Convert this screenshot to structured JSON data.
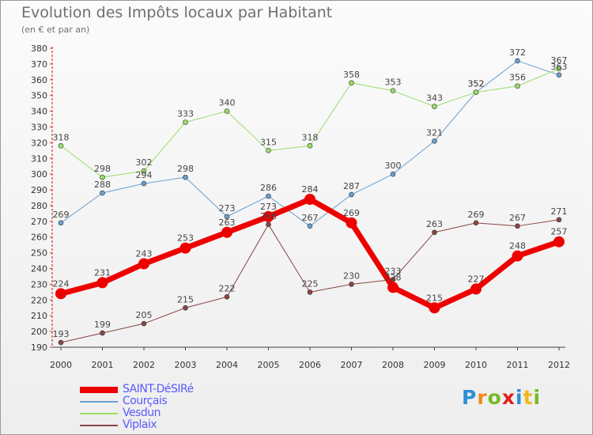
{
  "title": "Evolution des Impôts locaux par Habitant",
  "subtitle": "(en € et par an)",
  "brand": {
    "letters": [
      {
        "t": "P",
        "color": "#2a8fd6"
      },
      {
        "t": "r",
        "color": "#f08a1a"
      },
      {
        "t": "o",
        "color": "#78b828"
      },
      {
        "t": "x",
        "color": "#e0201a"
      },
      {
        "t": "i",
        "color": "#2a8fd6"
      },
      {
        "t": "t",
        "color": "#f0b81a"
      },
      {
        "t": "i",
        "color": "#78b828"
      }
    ]
  },
  "chart_data": {
    "type": "line",
    "x": [
      2000,
      2001,
      2002,
      2003,
      2004,
      2005,
      2006,
      2007,
      2008,
      2009,
      2010,
      2011,
      2012
    ],
    "ylim": [
      190,
      380
    ],
    "ytick_step": 10,
    "grid": false,
    "legend_position": "bottom-left",
    "series": [
      {
        "name": "SAINT-DéSIRé",
        "color": "#ee0000",
        "width": 7,
        "marker": 7,
        "values": [
          224,
          231,
          243,
          253,
          263,
          273,
          284,
          269,
          228,
          215,
          227,
          248,
          257
        ]
      },
      {
        "name": "Courçais",
        "color": "#6a9fcf",
        "width": 1,
        "marker": 3,
        "values": [
          269,
          288,
          294,
          298,
          273,
          286,
          267,
          287,
          300,
          321,
          352,
          372,
          363
        ]
      },
      {
        "name": "Vesdun",
        "color": "#99dd66",
        "width": 1,
        "marker": 3,
        "values": [
          318,
          298,
          302,
          333,
          340,
          315,
          318,
          358,
          353,
          343,
          352,
          356,
          367
        ]
      },
      {
        "name": "Viplaix",
        "color": "#8a4545",
        "width": 1,
        "marker": 3,
        "values": [
          193,
          199,
          205,
          215,
          222,
          268,
          225,
          230,
          233,
          263,
          269,
          267,
          271
        ]
      }
    ]
  }
}
